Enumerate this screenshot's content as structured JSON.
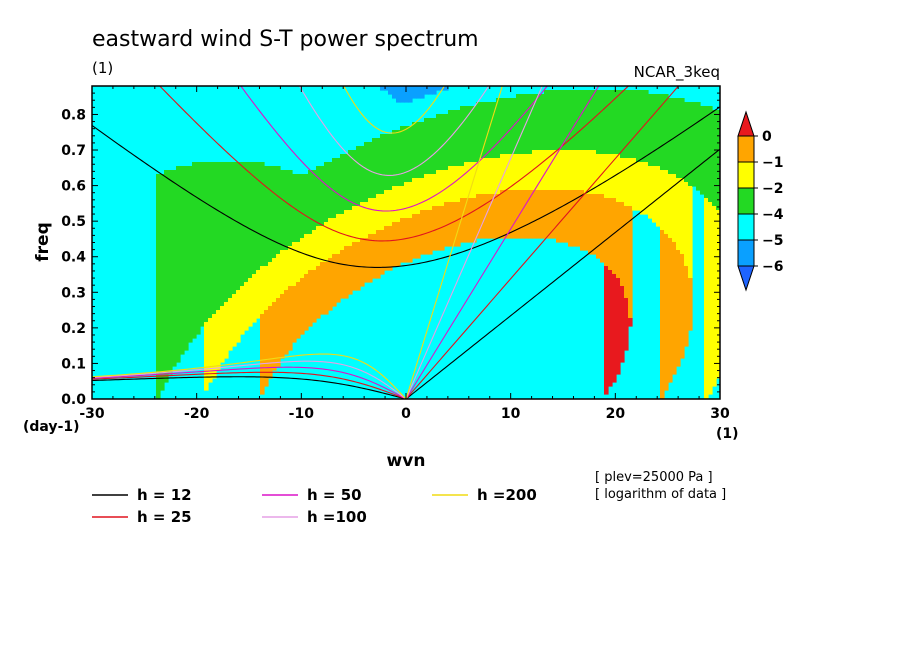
{
  "title": "eastward wind S-T power spectrum",
  "subtitle_left": "(1)",
  "subtitle_right": "NCAR_3keq",
  "xlabel": "wvn",
  "ylabel": "freq",
  "x_unit": "(1)",
  "y_unit": "(day-1)",
  "notes": [
    "[ plev=25000 Pa ]",
    "[ logarithm of data ]"
  ],
  "chart_data": {
    "type": "heatmap",
    "title": "eastward wind S-T power spectrum",
    "xlabel": "wvn",
    "ylabel": "freq",
    "xlim": [
      -30,
      30
    ],
    "ylim": [
      0,
      0.88
    ],
    "x_ticks": [
      -30,
      -20,
      -10,
      0,
      10,
      20,
      30
    ],
    "y_ticks": [
      0.0,
      0.1,
      0.2,
      0.3,
      0.4,
      0.5,
      0.6,
      0.7,
      0.8
    ],
    "x_tick_labels": [
      "-30",
      "-20",
      "-10",
      "0",
      "10",
      "20",
      "30"
    ],
    "y_tick_labels": [
      "0.0",
      "0.1",
      "0.2",
      "0.3",
      "0.4",
      "0.5",
      "0.6",
      "0.7",
      "0.8"
    ],
    "colorbar": {
      "levels": [
        0,
        -1,
        -2,
        -4,
        -5,
        -6
      ],
      "labels": [
        "0",
        "−1",
        "−2",
        "−4",
        "−5",
        "−6"
      ],
      "colors": [
        "#e8191e",
        "#ffa500",
        "#ffff00",
        "#23d923",
        "#00ffff",
        "#0aa0ff",
        "#1e64ff"
      ]
    },
    "dispersion_curves": [
      {
        "name": "h = 12",
        "color": "#000000",
        "equivalent_depth": 12
      },
      {
        "name": "h = 25",
        "color": "#e0141e",
        "equivalent_depth": 25
      },
      {
        "name": "h = 50",
        "color": "#dc14c8",
        "equivalent_depth": 50
      },
      {
        "name": "h =100",
        "color": "#e6a0e6",
        "equivalent_depth": 100
      },
      {
        "name": "h =200",
        "color": "#f0dc14",
        "equivalent_depth": 200
      }
    ]
  }
}
